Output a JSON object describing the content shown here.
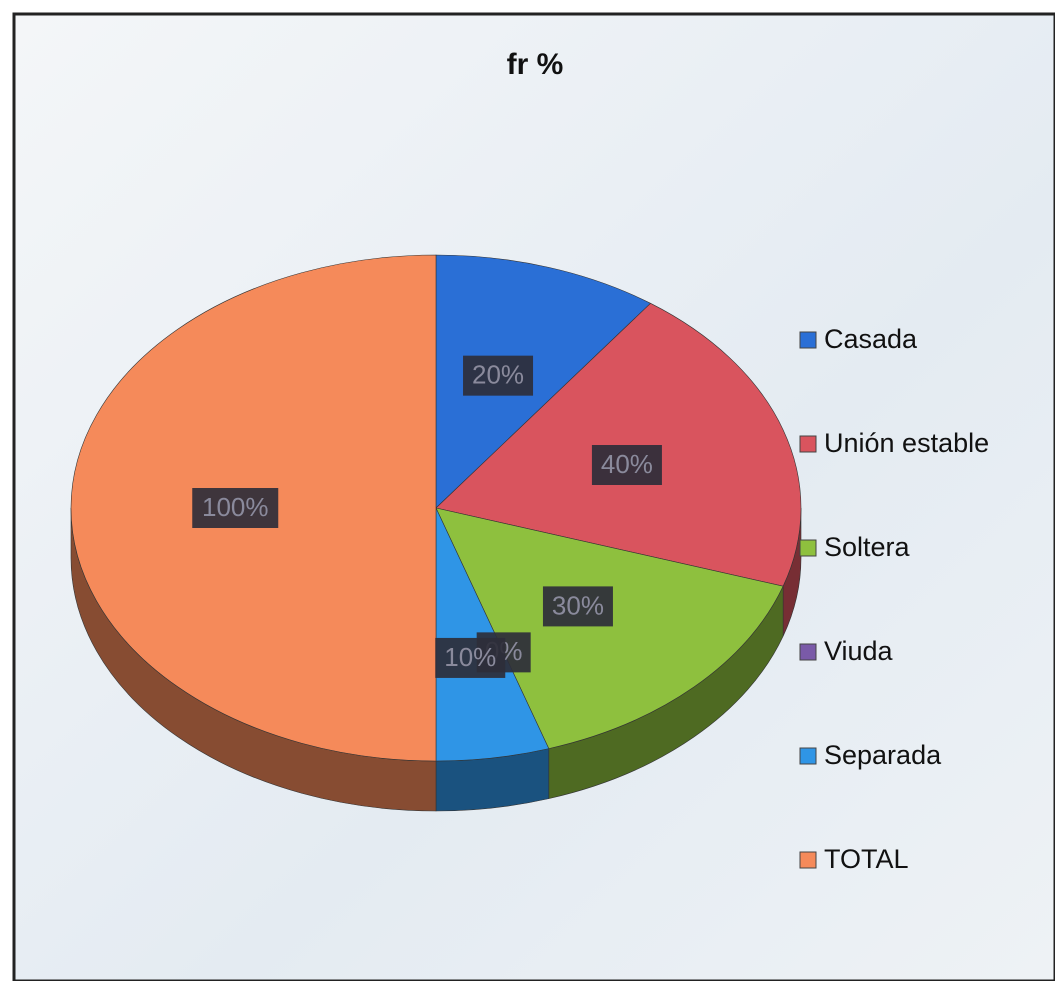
{
  "chart_data": {
    "type": "pie",
    "title": "fr %",
    "categories": [
      "Casada",
      "Unión estable",
      "Soltera",
      "Viuda",
      "Separada",
      "TOTAL"
    ],
    "values": [
      20,
      40,
      30,
      0,
      10,
      100
    ],
    "value_labels": [
      "20%",
      "40%",
      "30%",
      "0%",
      "10%",
      "100%"
    ],
    "colors": [
      "#2a6fd6",
      "#d9545e",
      "#8ec03e",
      "#7a5aa8",
      "#2f95e6",
      "#f58a5a"
    ]
  }
}
